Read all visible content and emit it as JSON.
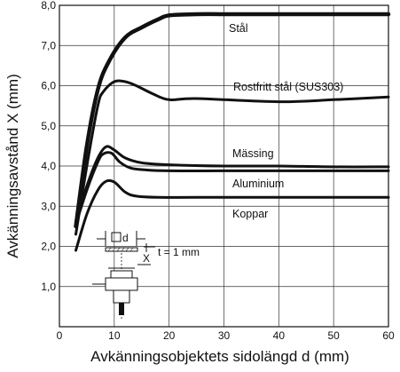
{
  "chart_data": {
    "type": "line",
    "title": "",
    "xlabel": "Avkänningsobjektets sidolängd d (mm)",
    "ylabel": "Avkänningsavstånd X (mm)",
    "xlim": [
      0,
      60
    ],
    "ylim": [
      0,
      8.0
    ],
    "xticks": [
      0,
      10,
      20,
      30,
      40,
      50,
      60
    ],
    "yticks": [
      1.0,
      2.0,
      3.0,
      4.0,
      5.0,
      6.0,
      7.0,
      8.0
    ],
    "xtick_labels": [
      "0",
      "10",
      "20",
      "30",
      "40",
      "50",
      "60"
    ],
    "ytick_labels": [
      "1,0",
      "2,0",
      "3,0",
      "4,0",
      "5,0",
      "6,0",
      "7,0",
      "8,0"
    ],
    "grid": true,
    "legend": "none",
    "series": [
      {
        "name": "Stål",
        "color": "#111111",
        "weight": "heavy",
        "points": [
          [
            3,
            2.5
          ],
          [
            5,
            4.5
          ],
          [
            7,
            5.9
          ],
          [
            9,
            6.6
          ],
          [
            12,
            7.2
          ],
          [
            15,
            7.45
          ],
          [
            18,
            7.65
          ],
          [
            20,
            7.75
          ],
          [
            25,
            7.78
          ],
          [
            30,
            7.78
          ],
          [
            40,
            7.78
          ],
          [
            50,
            7.78
          ],
          [
            60,
            7.78
          ]
        ]
      },
      {
        "name": "Rostfritt stål (SUS303)",
        "color": "#111111",
        "weight": "normal",
        "points": [
          [
            3,
            2.3
          ],
          [
            5,
            4.0
          ],
          [
            7,
            5.5
          ],
          [
            8,
            5.85
          ],
          [
            10,
            6.1
          ],
          [
            12,
            6.1
          ],
          [
            14,
            6.0
          ],
          [
            17,
            5.8
          ],
          [
            20,
            5.65
          ],
          [
            25,
            5.68
          ],
          [
            40,
            5.6
          ],
          [
            50,
            5.65
          ],
          [
            60,
            5.72
          ]
        ]
      },
      {
        "name": "Mässing",
        "color": "#111111",
        "weight": "normal",
        "points": [
          [
            3,
            2.6
          ],
          [
            5,
            3.5
          ],
          [
            7,
            4.2
          ],
          [
            8.5,
            4.48
          ],
          [
            10,
            4.4
          ],
          [
            12,
            4.2
          ],
          [
            15,
            4.08
          ],
          [
            20,
            4.03
          ],
          [
            30,
            4.0
          ],
          [
            40,
            4.0
          ],
          [
            50,
            3.98
          ],
          [
            60,
            3.98
          ]
        ]
      },
      {
        "name": "Aluminium",
        "color": "#111111",
        "weight": "normal",
        "points": [
          [
            3,
            2.55
          ],
          [
            5,
            3.4
          ],
          [
            7,
            4.1
          ],
          [
            8,
            4.3
          ],
          [
            9.5,
            4.32
          ],
          [
            11,
            4.1
          ],
          [
            13,
            3.95
          ],
          [
            16,
            3.9
          ],
          [
            20,
            3.88
          ],
          [
            30,
            3.88
          ],
          [
            40,
            3.88
          ],
          [
            50,
            3.88
          ],
          [
            60,
            3.88
          ]
        ]
      },
      {
        "name": "Koppar",
        "color": "#111111",
        "weight": "normal",
        "points": [
          [
            3,
            1.9
          ],
          [
            5,
            2.8
          ],
          [
            7,
            3.4
          ],
          [
            8.5,
            3.62
          ],
          [
            10,
            3.6
          ],
          [
            12,
            3.35
          ],
          [
            14,
            3.25
          ],
          [
            18,
            3.22
          ],
          [
            25,
            3.22
          ],
          [
            40,
            3.22
          ],
          [
            50,
            3.22
          ],
          [
            60,
            3.22
          ]
        ]
      }
    ]
  },
  "inset": {
    "d_label": "d",
    "x_label": "X",
    "t_label": "t = 1 mm"
  }
}
